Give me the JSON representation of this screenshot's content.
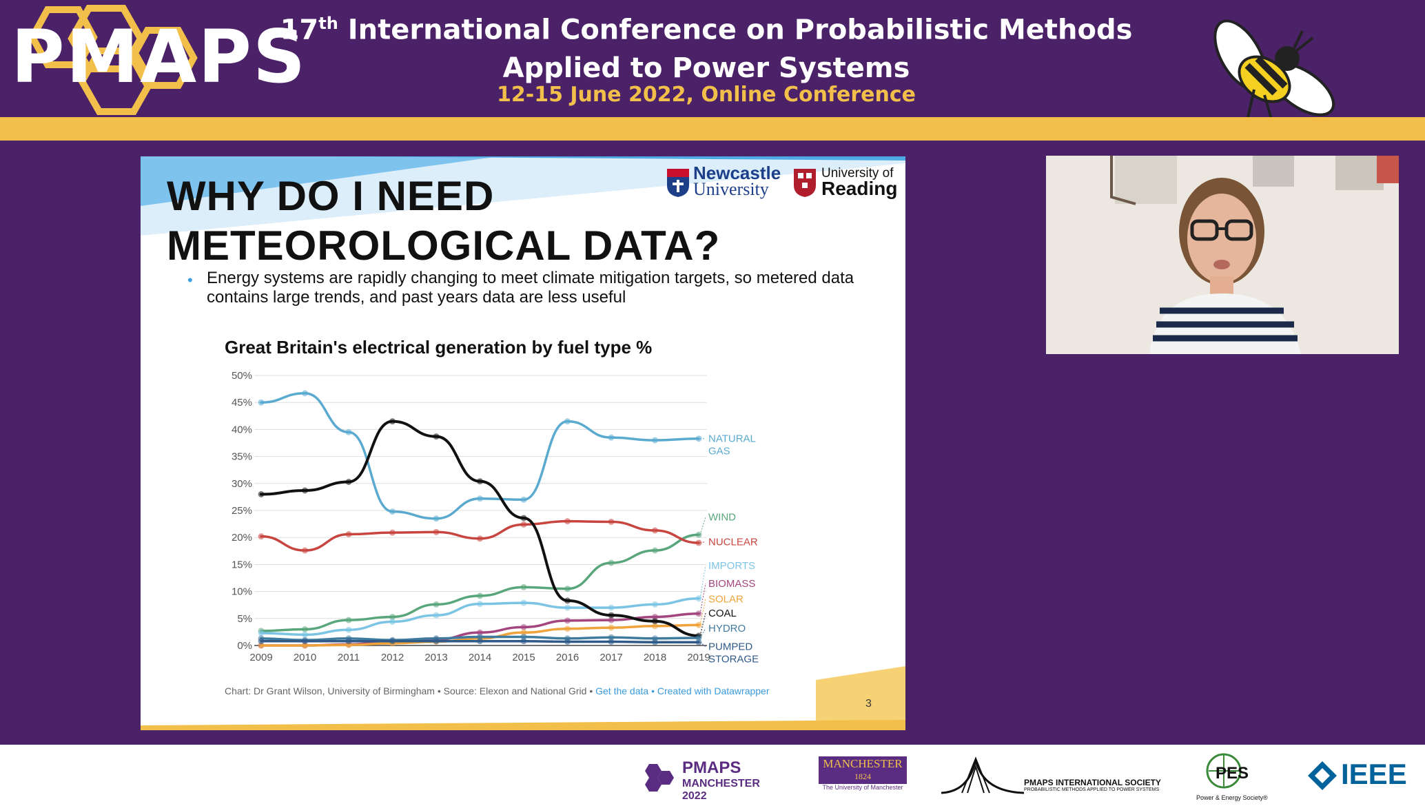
{
  "header": {
    "logo_text": "PMAPS",
    "title_number": "17",
    "title_sup": "th",
    "title_line1_rest": "International Conference on Probabilistic Methods",
    "title_line2": "Applied to Power Systems",
    "date_line": "12-15 June 2022, Online Conference"
  },
  "slide": {
    "title_line1": "WHY DO I NEED",
    "title_line2": "METEOROLOGICAL DATA?",
    "logo_newcastle_1": "Newcastle",
    "logo_newcastle_2": "University",
    "logo_reading_1": "University of",
    "logo_reading_2": "Reading",
    "bullet": "Energy systems are rapidly changing to meet climate mitigation targets, so metered data contains large trends, and past years data are less useful",
    "chart_title": "Great Britain's electrical generation by fuel type %",
    "credit_prefix": "Chart: Dr Grant Wilson, University of Birmingham • Source: Elexon and National Grid •",
    "credit_link1": "Get the data",
    "credit_sep": "•",
    "credit_link2": "Created with Datawrapper",
    "page_number": "3"
  },
  "chart_data": {
    "type": "line",
    "x": [
      "2009",
      "2010",
      "2011",
      "2012",
      "2013",
      "2014",
      "2015",
      "2016",
      "2017",
      "2018",
      "2019"
    ],
    "y_ticks": [
      "0%",
      "5%",
      "10%",
      "15%",
      "20%",
      "25%",
      "30%",
      "35%",
      "40%",
      "45%",
      "50%"
    ],
    "ylim": [
      0,
      50
    ],
    "grid": true,
    "series": [
      {
        "name": "NATURAL GAS",
        "label_lines": [
          "NATURAL",
          "GAS"
        ],
        "color": "#5aaad0",
        "values": [
          45,
          46.7,
          39.5,
          24.8,
          23.5,
          27.2,
          27,
          41.5,
          38.5,
          38,
          38.3
        ]
      },
      {
        "name": "WIND",
        "label_lines": [
          "WIND"
        ],
        "color": "#5aa67c",
        "values": [
          2.7,
          3,
          4.7,
          5.3,
          7.6,
          9.2,
          10.8,
          10.5,
          15.3,
          17.6,
          20.5
        ]
      },
      {
        "name": "NUCLEAR",
        "label_lines": [
          "NUCLEAR"
        ],
        "color": "#c8453f",
        "values": [
          20.2,
          17.6,
          20.6,
          20.9,
          21,
          19.8,
          22.4,
          23,
          22.9,
          21.3,
          19
        ]
      },
      {
        "name": "IMPORTS",
        "label_lines": [
          "IMPORTS"
        ],
        "color": "#7cc4e4",
        "values": [
          2.3,
          2,
          2.9,
          4.4,
          5.6,
          7.7,
          7.9,
          7,
          7,
          7.6,
          8.7
        ]
      },
      {
        "name": "BIOMASS",
        "label_lines": [
          "BIOMASS"
        ],
        "color": "#a3457e",
        "values": [
          0,
          0,
          0.2,
          0.8,
          1.1,
          2.4,
          3.4,
          4.6,
          4.7,
          5.3,
          5.9
        ]
      },
      {
        "name": "SOLAR",
        "label_lines": [
          "SOLAR"
        ],
        "color": "#f0a33a",
        "values": [
          0,
          0,
          0.1,
          0.4,
          0.7,
          1.3,
          2.4,
          3.1,
          3.3,
          3.6,
          3.8
        ]
      },
      {
        "name": "COAL",
        "label_lines": [
          "COAL"
        ],
        "color": "#111111",
        "values": [
          28,
          28.7,
          30.3,
          41.5,
          38.7,
          30.4,
          23.6,
          8.3,
          5.6,
          4.5,
          1.8
        ]
      },
      {
        "name": "HYDRO",
        "label_lines": [
          "HYDRO"
        ],
        "color": "#3f7a9f",
        "values": [
          1.3,
          1,
          1.3,
          1,
          1.3,
          1.6,
          1.6,
          1.3,
          1.5,
          1.3,
          1.4
        ]
      },
      {
        "name": "PUMPED STORAGE",
        "label_lines": [
          "PUMPED",
          "STORAGE"
        ],
        "color": "#2f5a88",
        "values": [
          0.8,
          0.8,
          0.8,
          0.8,
          0.8,
          0.8,
          0.8,
          0.7,
          0.7,
          0.6,
          0.6
        ]
      }
    ]
  },
  "footer": {
    "pmaps_logo": "PMAPS",
    "manchester_2022": "MANCHESTER 2022",
    "uom_line1": "MANCHESTER",
    "uom_line2": "1824",
    "uom_caption": "The University of Manchester",
    "pmaps_society": "PMAPS INTERNATIONAL SOCIETY",
    "pmaps_society_sub": "PROBABILISTIC METHODS APPLIED TO POWER SYSTEMS",
    "pes": "PES",
    "pes_caption": "Power & Energy Society®",
    "ieee": "IEEE"
  },
  "colors": {
    "background": "#4b2168",
    "gold": "#f2c04a"
  }
}
